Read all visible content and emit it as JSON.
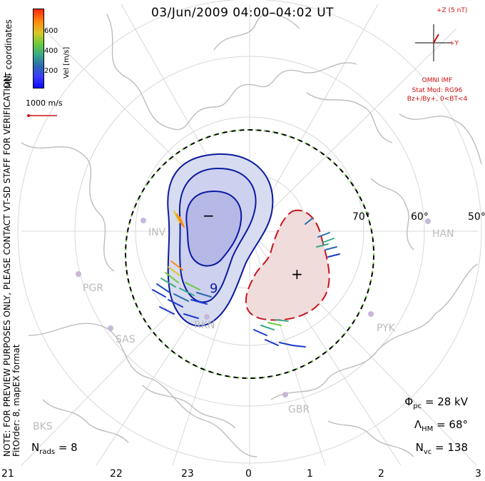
{
  "title": "03/Jun/2009 04:00–04:02 UT",
  "side_note": [
    "NOTE: FOR PREVIEW PURPOSES ONLY, PLEASE CONTACT VT-SD STAFF FOR VERIFICATION.",
    "FitOrder: 8, mapEX format"
  ],
  "coord_label": "MLT coordinates",
  "velocity_scale": {
    "label": "Vel [m/s]",
    "ticks": [
      "600",
      "400",
      "200"
    ]
  },
  "reference_vector_label": "1000 m/s",
  "imf": {
    "bz_label": "+Z (5 nT)",
    "by_label": "+Y",
    "source": "OMNI IMF",
    "stat_model": "Stat Mod: RG96",
    "condition": "Bz+/By+, 0<BT<4"
  },
  "stats": {
    "phi_symbol": "Φ",
    "phi_sub": "pc",
    "phi_value": "= 28 kV",
    "lambda_symbol": "Λ",
    "lambda_sub": "HM",
    "lambda_value": "= 68°",
    "n_vc_symbol": "N",
    "n_vc_sub": "vc",
    "n_vc_value": "= 138"
  },
  "nrads": {
    "symbol": "N",
    "sub": "rads",
    "value": "= 8"
  },
  "mlt_hours": [
    "21",
    "22",
    "23",
    "0",
    "1",
    "2",
    "3"
  ],
  "latitudes": [
    "70°",
    "60°",
    "50°"
  ],
  "stations": [
    "INV",
    "PGR",
    "SAS",
    "RKN",
    "PYK",
    "HAN",
    "GBR",
    "BKS"
  ],
  "potential_signs": {
    "negative": "−",
    "positive": "+"
  },
  "contour_label": "9",
  "colors": {
    "negative_cell": "#d8dcf0",
    "negative_core": "#b6b8e6",
    "negative_line": "#0a1aa0",
    "positive_cell": "#f1dcdc",
    "positive_line": "#c8141e",
    "hmb": "#22aa22"
  }
}
